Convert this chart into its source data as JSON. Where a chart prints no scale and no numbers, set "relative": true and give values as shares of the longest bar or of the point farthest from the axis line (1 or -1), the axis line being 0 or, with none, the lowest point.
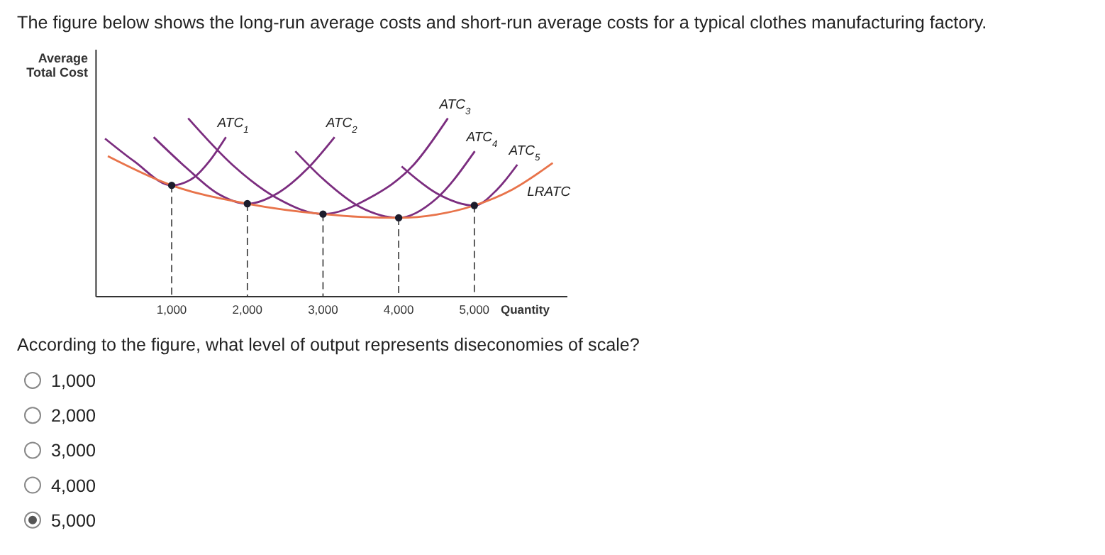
{
  "chart_data": {
    "type": "line",
    "title": "The figure below shows the long-run average costs and short-run average costs for a typical clothes manufacturing factory.",
    "ylabel": "Average Total Cost",
    "xlabel": "Quantity",
    "relative": true,
    "xlim": [
      0,
      6230
    ],
    "xticks": [
      {
        "value": 1000,
        "label": "1,000"
      },
      {
        "value": 2000,
        "label": "2,000"
      },
      {
        "value": 3000,
        "label": "3,000"
      },
      {
        "value": 4000,
        "label": "4,000"
      },
      {
        "value": 5000,
        "label": "5,000"
      }
    ],
    "legend": false,
    "grid": false,
    "marker": "none",
    "line_style": "solid",
    "series": [
      {
        "name": "ATC$_{1}$",
        "color": "#7b2d7f",
        "x": [
          119,
          500,
          1000,
          1300,
          1500,
          1717
        ],
        "values": [
          0.886,
          0.76,
          0.624,
          0.67,
          0.76,
          0.894
        ]
      },
      {
        "name": "ATC$_{2}$",
        "color": "#7b2d7f",
        "x": [
          762,
          1200,
          1600,
          2000,
          2400,
          2800,
          3152
        ],
        "values": [
          0.894,
          0.72,
          0.58,
          0.521,
          0.58,
          0.72,
          0.894
        ]
      },
      {
        "name": "ATC$_{3}$",
        "color": "#7b2d7f",
        "x": [
          1217,
          1800,
          2400,
          3000,
          3600,
          4200,
          4650
        ],
        "values": [
          1,
          0.74,
          0.55,
          0.463,
          0.55,
          0.74,
          1
        ]
      },
      {
        "name": "ATC$_{4}$",
        "color": "#7b2d7f",
        "x": [
          2634,
          3000,
          3500,
          4000,
          4500,
          5006
        ],
        "values": [
          0.815,
          0.66,
          0.5,
          0.442,
          0.55,
          0.815
        ]
      },
      {
        "name": "ATC$_{5}$",
        "color": "#7b2d7f",
        "x": [
          4039,
          4500,
          5000,
          5300,
          5568
        ],
        "values": [
          0.73,
          0.58,
          0.511,
          0.6,
          0.74
        ]
      },
      {
        "name": "LRATC",
        "color": "#e8734a",
        "x": [
          156,
          1000,
          2000,
          3000,
          3500,
          4000,
          4500,
          5000,
          5500,
          6036
        ],
        "values": [
          0.788,
          0.624,
          0.521,
          0.463,
          0.447,
          0.442,
          0.46,
          0.511,
          0.6,
          0.749
        ]
      },
      {
        "type": "scatter",
        "color": "#1c1c2c",
        "marker": "circle",
        "x": [
          1000,
          2000,
          3000,
          4000,
          5000
        ],
        "values": [
          0.624,
          0.521,
          0.463,
          0.442,
          0.511
        ]
      }
    ],
    "ref_lines": [
      {
        "axis": "x",
        "value": 1000,
        "line_style": "dashed",
        "color": "#333333"
      },
      {
        "axis": "x",
        "value": 2000,
        "line_style": "dashed",
        "color": "#333333"
      },
      {
        "axis": "x",
        "value": 3000,
        "line_style": "dashed",
        "color": "#333333"
      },
      {
        "axis": "x",
        "value": 4000,
        "line_style": "dashed",
        "color": "#333333"
      },
      {
        "axis": "x",
        "value": 5000,
        "line_style": "dashed",
        "color": "#333333"
      }
    ],
    "annotations": [
      "According to the figure, what level of output represents diseconomies of scale?",
      "1,000",
      "2,000",
      "3,000",
      "4,000",
      "5,000"
    ]
  }
}
